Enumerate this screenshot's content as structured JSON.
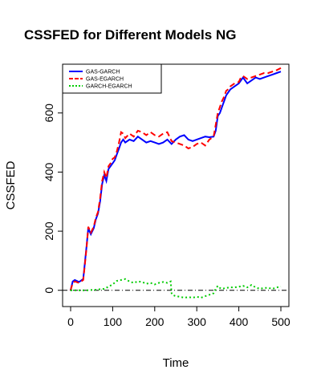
{
  "chart_data": {
    "type": "line",
    "title": "CSSFED for Different Models NG",
    "xlabel": "Time",
    "ylabel": "CSSFED",
    "xlim": [
      0,
      500
    ],
    "ylim": [
      -55,
      765
    ],
    "x_ticks": [
      0,
      100,
      200,
      300,
      400,
      500
    ],
    "x_tick_labels": [
      "0",
      "100",
      "200",
      "300",
      "400",
      "500"
    ],
    "y_ticks": [
      0,
      200,
      400,
      600
    ],
    "y_tick_labels": [
      "0",
      "200",
      "400",
      "600"
    ],
    "grid": false,
    "legend_position": "top-left",
    "reference_line": {
      "y": 0,
      "color": "#000000",
      "style": "dash-dot"
    },
    "series": [
      {
        "name": "GAS-GARCH",
        "color": "#0000ff",
        "style": "solid",
        "x": [
          0,
          5,
          10,
          20,
          30,
          33,
          38,
          42,
          48,
          55,
          60,
          65,
          70,
          75,
          80,
          85,
          90,
          95,
          100,
          105,
          110,
          115,
          120,
          125,
          130,
          140,
          150,
          160,
          170,
          180,
          190,
          200,
          210,
          220,
          230,
          240,
          250,
          260,
          270,
          280,
          290,
          300,
          310,
          320,
          330,
          340,
          345,
          350,
          355,
          360,
          365,
          370,
          375,
          380,
          390,
          400,
          405,
          410,
          420,
          430,
          440,
          450,
          460,
          470,
          480,
          490,
          500
        ],
        "y": [
          0,
          30,
          35,
          28,
          38,
          80,
          150,
          210,
          190,
          210,
          240,
          260,
          300,
          360,
          390,
          370,
          410,
          420,
          430,
          440,
          460,
          480,
          500,
          510,
          500,
          510,
          505,
          520,
          510,
          500,
          505,
          500,
          495,
          500,
          510,
          495,
          510,
          520,
          525,
          510,
          505,
          510,
          515,
          520,
          518,
          520,
          540,
          590,
          600,
          620,
          640,
          660,
          670,
          680,
          690,
          700,
          710,
          720,
          700,
          710,
          720,
          715,
          720,
          725,
          730,
          735,
          740
        ]
      },
      {
        "name": "GAS-EGARCH",
        "color": "#ff0000",
        "style": "dashed",
        "x": [
          0,
          5,
          10,
          20,
          30,
          33,
          38,
          42,
          48,
          55,
          60,
          65,
          70,
          75,
          80,
          85,
          90,
          95,
          100,
          105,
          110,
          115,
          120,
          125,
          130,
          140,
          150,
          160,
          170,
          180,
          190,
          200,
          210,
          220,
          230,
          240,
          250,
          260,
          270,
          280,
          290,
          300,
          310,
          320,
          330,
          340,
          345,
          350,
          355,
          360,
          365,
          370,
          375,
          380,
          390,
          400,
          405,
          410,
          420,
          430,
          440,
          450,
          460,
          470,
          480,
          490,
          500
        ],
        "y": [
          0,
          25,
          30,
          25,
          35,
          75,
          145,
          215,
          195,
          215,
          245,
          265,
          310,
          370,
          400,
          380,
          420,
          430,
          445,
          450,
          470,
          500,
          535,
          530,
          515,
          530,
          520,
          540,
          535,
          525,
          535,
          525,
          520,
          530,
          535,
          505,
          500,
          495,
          490,
          480,
          485,
          495,
          500,
          490,
          510,
          520,
          560,
          600,
          620,
          640,
          655,
          675,
          680,
          690,
          700,
          705,
          720,
          725,
          715,
          720,
          725,
          730,
          735,
          735,
          740,
          745,
          752
        ]
      },
      {
        "name": "GARCH-EGARCH",
        "color": "#00cc00",
        "style": "dotted",
        "x": [
          0,
          20,
          40,
          60,
          80,
          90,
          100,
          110,
          120,
          130,
          140,
          150,
          160,
          170,
          180,
          190,
          200,
          210,
          220,
          230,
          238,
          240,
          242,
          250,
          260,
          270,
          280,
          290,
          300,
          310,
          320,
          330,
          340,
          345,
          350,
          355,
          360,
          370,
          380,
          390,
          400,
          410,
          420,
          430,
          440,
          450,
          460,
          470,
          480,
          490,
          500
        ],
        "y": [
          0,
          0,
          0,
          2,
          5,
          12,
          20,
          32,
          35,
          38,
          30,
          25,
          30,
          28,
          22,
          25,
          20,
          25,
          28,
          25,
          30,
          -10,
          -15,
          -20,
          -22,
          -25,
          -23,
          -25,
          -22,
          -25,
          -20,
          -15,
          -10,
          5,
          15,
          8,
          5,
          8,
          10,
          10,
          12,
          15,
          10,
          18,
          10,
          5,
          8,
          8,
          5,
          10,
          12
        ]
      }
    ]
  }
}
